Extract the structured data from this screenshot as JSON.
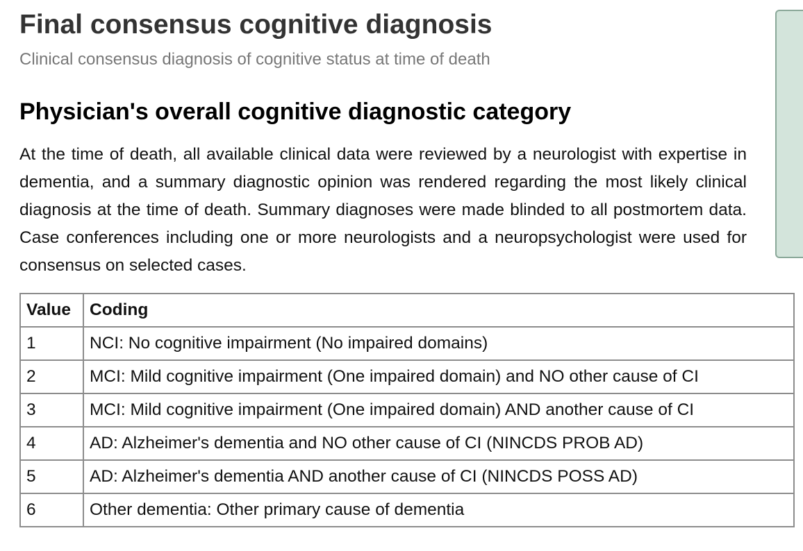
{
  "header": {
    "title": "Final consensus cognitive diagnosis",
    "subtitle": "Clinical consensus diagnosis of cognitive status at time of death"
  },
  "section": {
    "heading": "Physician's overall cognitive diagnostic category",
    "description": "At the time of death, all available clinical data were reviewed by a neurologist with expertise in dementia, and a summary diagnostic opinion was rendered regarding the most likely clinical diagnosis at the time of death. Summary diagnoses were made blinded to all postmortem data. Case conferences including one or more neurologists and a neuropsychologist were used for consensus on selected cases."
  },
  "table": {
    "headers": {
      "value": "Value",
      "coding": "Coding"
    },
    "rows": [
      {
        "value": "1",
        "coding": "NCI: No cognitive impairment (No impaired domains)"
      },
      {
        "value": "2",
        "coding": "MCI: Mild cognitive impairment (One impaired domain) and NO other cause of CI"
      },
      {
        "value": "3",
        "coding": "MCI: Mild cognitive impairment (One impaired domain) AND another cause of CI"
      },
      {
        "value": "4",
        "coding": "AD: Alzheimer's dementia and NO other cause of CI (NINCDS PROB AD)"
      },
      {
        "value": "5",
        "coding": "AD: Alzheimer's dementia AND another cause of CI (NINCDS POSS AD)"
      },
      {
        "value": "6",
        "coding": "Other dementia: Other primary cause of dementia"
      }
    ]
  },
  "colors": {
    "side_panel_bg": "#d3e4db",
    "side_panel_border": "#8aa899",
    "table_border": "#8c8c8c"
  }
}
